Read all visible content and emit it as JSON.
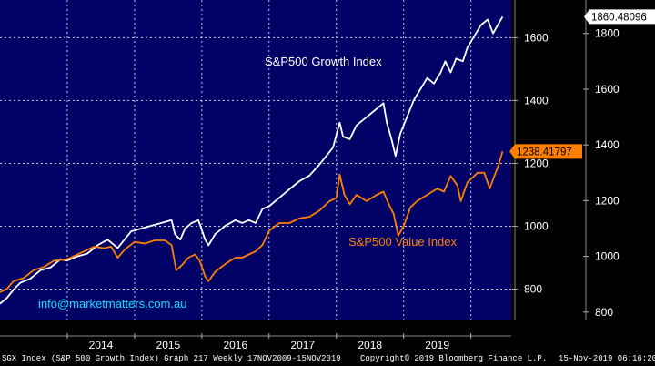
{
  "chart_data": {
    "type": "line",
    "x_labels": [
      "2014",
      "2015",
      "2016",
      "2017",
      "2018",
      "2019"
    ],
    "left_axis": {
      "ticks": [
        800,
        1000,
        1200,
        1400,
        1600
      ],
      "range": [
        700,
        1720
      ]
    },
    "right_axis": {
      "ticks": [
        800,
        1000,
        1200,
        1400,
        1600,
        1800
      ],
      "range": [
        770,
        1920
      ]
    },
    "series": [
      {
        "name": "S&P500 Growth Index",
        "axis": "right",
        "color": "#ffffff",
        "last_value": "1860.48096",
        "points": [
          [
            2013.0,
            830
          ],
          [
            2013.1,
            850
          ],
          [
            2013.2,
            880
          ],
          [
            2013.3,
            905
          ],
          [
            2013.45,
            920
          ],
          [
            2013.6,
            950
          ],
          [
            2013.75,
            960
          ],
          [
            2013.9,
            990
          ],
          [
            2014.0,
            985
          ],
          [
            2014.15,
            1000
          ],
          [
            2014.3,
            1010
          ],
          [
            2014.45,
            1040
          ],
          [
            2014.6,
            1060
          ],
          [
            2014.75,
            1030
          ],
          [
            2014.85,
            1060
          ],
          [
            2014.95,
            1090
          ],
          [
            2015.1,
            1100
          ],
          [
            2015.25,
            1110
          ],
          [
            2015.4,
            1120
          ],
          [
            2015.55,
            1130
          ],
          [
            2015.6,
            1080
          ],
          [
            2015.68,
            1060
          ],
          [
            2015.75,
            1100
          ],
          [
            2015.85,
            1120
          ],
          [
            2015.95,
            1130
          ],
          [
            2016.05,
            1060
          ],
          [
            2016.1,
            1040
          ],
          [
            2016.2,
            1080
          ],
          [
            2016.35,
            1110
          ],
          [
            2016.5,
            1130
          ],
          [
            2016.6,
            1120
          ],
          [
            2016.7,
            1130
          ],
          [
            2016.8,
            1120
          ],
          [
            2016.9,
            1170
          ],
          [
            2017.0,
            1180
          ],
          [
            2017.15,
            1210
          ],
          [
            2017.3,
            1240
          ],
          [
            2017.45,
            1270
          ],
          [
            2017.6,
            1290
          ],
          [
            2017.75,
            1330
          ],
          [
            2017.85,
            1360
          ],
          [
            2017.95,
            1390
          ],
          [
            2018.05,
            1480
          ],
          [
            2018.1,
            1430
          ],
          [
            2018.2,
            1420
          ],
          [
            2018.3,
            1470
          ],
          [
            2018.45,
            1500
          ],
          [
            2018.6,
            1530
          ],
          [
            2018.7,
            1550
          ],
          [
            2018.75,
            1480
          ],
          [
            2018.82,
            1420
          ],
          [
            2018.88,
            1360
          ],
          [
            2018.95,
            1440
          ],
          [
            2019.05,
            1500
          ],
          [
            2019.15,
            1560
          ],
          [
            2019.25,
            1600
          ],
          [
            2019.35,
            1640
          ],
          [
            2019.45,
            1620
          ],
          [
            2019.55,
            1660
          ],
          [
            2019.62,
            1700
          ],
          [
            2019.7,
            1660
          ],
          [
            2019.78,
            1710
          ],
          [
            2019.88,
            1700
          ],
          [
            2019.95,
            1750
          ],
          [
            2020.05,
            1790
          ],
          [
            2020.15,
            1830
          ],
          [
            2020.25,
            1850
          ],
          [
            2020.33,
            1800
          ],
          [
            2020.4,
            1830
          ],
          [
            2020.47,
            1860
          ]
        ]
      },
      {
        "name": "S&P500 Value Index",
        "axis": "left",
        "color": "#ff7f00",
        "last_value": "1238.41797",
        "points": [
          [
            2013.0,
            790
          ],
          [
            2013.1,
            800
          ],
          [
            2013.2,
            825
          ],
          [
            2013.35,
            835
          ],
          [
            2013.5,
            860
          ],
          [
            2013.65,
            870
          ],
          [
            2013.8,
            890
          ],
          [
            2014.0,
            895
          ],
          [
            2014.1,
            905
          ],
          [
            2014.25,
            920
          ],
          [
            2014.4,
            935
          ],
          [
            2014.55,
            930
          ],
          [
            2014.65,
            935
          ],
          [
            2014.75,
            900
          ],
          [
            2014.85,
            925
          ],
          [
            2015.0,
            950
          ],
          [
            2015.15,
            945
          ],
          [
            2015.3,
            955
          ],
          [
            2015.45,
            955
          ],
          [
            2015.55,
            940
          ],
          [
            2015.62,
            860
          ],
          [
            2015.7,
            875
          ],
          [
            2015.8,
            900
          ],
          [
            2015.9,
            910
          ],
          [
            2015.97,
            890
          ],
          [
            2016.05,
            840
          ],
          [
            2016.1,
            825
          ],
          [
            2016.2,
            855
          ],
          [
            2016.35,
            880
          ],
          [
            2016.5,
            900
          ],
          [
            2016.6,
            900
          ],
          [
            2016.7,
            910
          ],
          [
            2016.8,
            920
          ],
          [
            2016.9,
            940
          ],
          [
            2017.0,
            985
          ],
          [
            2017.15,
            1010
          ],
          [
            2017.3,
            1010
          ],
          [
            2017.45,
            1025
          ],
          [
            2017.6,
            1030
          ],
          [
            2017.75,
            1050
          ],
          [
            2017.9,
            1080
          ],
          [
            2018.0,
            1090
          ],
          [
            2018.05,
            1165
          ],
          [
            2018.12,
            1100
          ],
          [
            2018.2,
            1070
          ],
          [
            2018.3,
            1100
          ],
          [
            2018.45,
            1080
          ],
          [
            2018.6,
            1100
          ],
          [
            2018.7,
            1110
          ],
          [
            2018.78,
            1070
          ],
          [
            2018.85,
            1040
          ],
          [
            2018.92,
            970
          ],
          [
            2019.0,
            1000
          ],
          [
            2019.1,
            1060
          ],
          [
            2019.2,
            1080
          ],
          [
            2019.35,
            1100
          ],
          [
            2019.5,
            1120
          ],
          [
            2019.6,
            1110
          ],
          [
            2019.7,
            1160
          ],
          [
            2019.8,
            1130
          ],
          [
            2019.85,
            1080
          ],
          [
            2019.95,
            1140
          ],
          [
            2020.1,
            1170
          ],
          [
            2020.2,
            1170
          ],
          [
            2020.28,
            1120
          ],
          [
            2020.35,
            1160
          ],
          [
            2020.42,
            1200
          ],
          [
            2020.47,
            1238
          ]
        ]
      }
    ],
    "annotations": {
      "growth_label": "S&P500 Growth Index",
      "value_label": "S&P500 Value Index",
      "watermark": "info@marketmatters.com.au"
    }
  },
  "footer": {
    "left": "SGX Index (S&P 500 Growth Index) Graph 217  Weekly 17NOV2009-15NOV2019",
    "middle": "Copyright© 2019 Bloomberg Finance L.P.",
    "right": "15-Nov-2019 06:16:20"
  },
  "colors": {
    "plot_bg": "#000066",
    "grid": "#ffffff",
    "axis_text": "#ffffff"
  }
}
